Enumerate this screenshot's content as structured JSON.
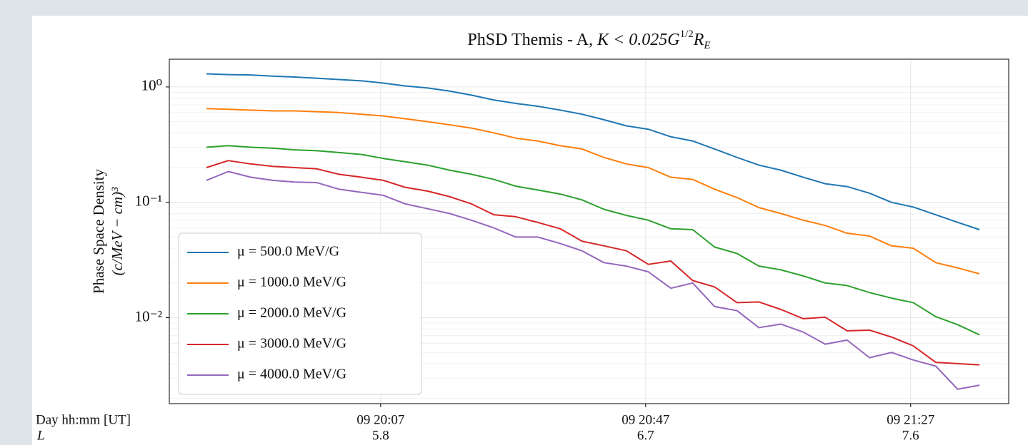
{
  "chart_data": {
    "type": "line",
    "title_parts": [
      "PhSD Themis - A, ",
      "K < 0.025G",
      "1/2",
      "R",
      "E"
    ],
    "ylabel": [
      "Phase Space Density",
      "(c/MeV − cm)³"
    ],
    "xlabel_rows": [
      "Day hh:mm [UT]",
      "L"
    ],
    "log_y": true,
    "grid": true,
    "legend": "lower left",
    "xlim": [
      1175.1,
      1301.8
    ],
    "xticks": [
      {
        "value": 1207,
        "label": "09 20:07"
      },
      {
        "value": 1247,
        "label": "09 20:47"
      },
      {
        "value": 1287,
        "label": "09 21:27"
      }
    ],
    "lticks": [
      5.8,
      6.7,
      7.6
    ],
    "ylim": [
      0.0018,
      1.74
    ],
    "yticks": [
      {
        "value": 1,
        "label": "10⁰"
      },
      {
        "value": 0.1,
        "label": "10⁻¹"
      },
      {
        "value": 0.01,
        "label": "10⁻²"
      }
    ],
    "x": [
      1180.7,
      1184.0,
      1187.4,
      1190.7,
      1194.0,
      1197.4,
      1200.7,
      1204.1,
      1207.4,
      1210.7,
      1214.1,
      1217.4,
      1220.7,
      1224.1,
      1227.4,
      1230.7,
      1234.1,
      1237.4,
      1240.7,
      1244.1,
      1247.4,
      1250.8,
      1254.1,
      1257.4,
      1260.8,
      1264.1,
      1267.4,
      1270.8,
      1274.1,
      1277.4,
      1280.8,
      1284.1,
      1287.4,
      1290.8,
      1294.1,
      1297.4
    ],
    "series": [
      {
        "name": "μ = 500.0 MeV/G",
        "color": "#1f77b4",
        "values": [
          1.3,
          1.28,
          1.27,
          1.24,
          1.22,
          1.19,
          1.16,
          1.13,
          1.08,
          1.02,
          0.98,
          0.92,
          0.85,
          0.77,
          0.72,
          0.68,
          0.63,
          0.58,
          0.52,
          0.46,
          0.43,
          0.37,
          0.34,
          0.29,
          0.245,
          0.21,
          0.19,
          0.165,
          0.145,
          0.137,
          0.12,
          0.1,
          0.091,
          0.078,
          0.067,
          0.058
        ]
      },
      {
        "name": "μ = 1000.0 MeV/G",
        "color": "#ff7f0e",
        "values": [
          0.65,
          0.64,
          0.63,
          0.62,
          0.62,
          0.61,
          0.6,
          0.58,
          0.56,
          0.53,
          0.5,
          0.47,
          0.44,
          0.4,
          0.36,
          0.34,
          0.31,
          0.29,
          0.245,
          0.215,
          0.2,
          0.165,
          0.158,
          0.13,
          0.11,
          0.09,
          0.08,
          0.07,
          0.063,
          0.054,
          0.051,
          0.042,
          0.04,
          0.03,
          0.027,
          0.024
        ]
      },
      {
        "name": "μ = 2000.0 MeV/G",
        "color": "#2ca02c",
        "values": [
          0.3,
          0.31,
          0.3,
          0.295,
          0.285,
          0.28,
          0.27,
          0.26,
          0.24,
          0.225,
          0.21,
          0.19,
          0.175,
          0.158,
          0.138,
          0.128,
          0.118,
          0.105,
          0.087,
          0.077,
          0.07,
          0.059,
          0.058,
          0.041,
          0.036,
          0.028,
          0.026,
          0.023,
          0.02,
          0.019,
          0.0165,
          0.0148,
          0.0135,
          0.0102,
          0.0087,
          0.0071
        ]
      },
      {
        "name": "μ = 3000.0 MeV/G",
        "color": "#d62728",
        "values": [
          0.2,
          0.23,
          0.215,
          0.205,
          0.2,
          0.195,
          0.175,
          0.165,
          0.155,
          0.135,
          0.125,
          0.112,
          0.097,
          0.078,
          0.075,
          0.067,
          0.059,
          0.046,
          0.042,
          0.038,
          0.029,
          0.031,
          0.021,
          0.0185,
          0.0135,
          0.0137,
          0.0118,
          0.0098,
          0.0101,
          0.0077,
          0.0078,
          0.0068,
          0.0057,
          0.0041,
          0.004,
          0.0039
        ]
      },
      {
        "name": "μ = 4000.0 MeV/G",
        "color": "#9467bd",
        "values": [
          0.155,
          0.185,
          0.165,
          0.155,
          0.15,
          0.148,
          0.13,
          0.122,
          0.115,
          0.097,
          0.088,
          0.08,
          0.07,
          0.06,
          0.05,
          0.05,
          0.044,
          0.038,
          0.03,
          0.028,
          0.025,
          0.018,
          0.02,
          0.0125,
          0.0115,
          0.0082,
          0.0088,
          0.0075,
          0.0059,
          0.0064,
          0.0045,
          0.005,
          0.0043,
          0.0038,
          0.0024,
          0.0026
        ]
      }
    ]
  }
}
